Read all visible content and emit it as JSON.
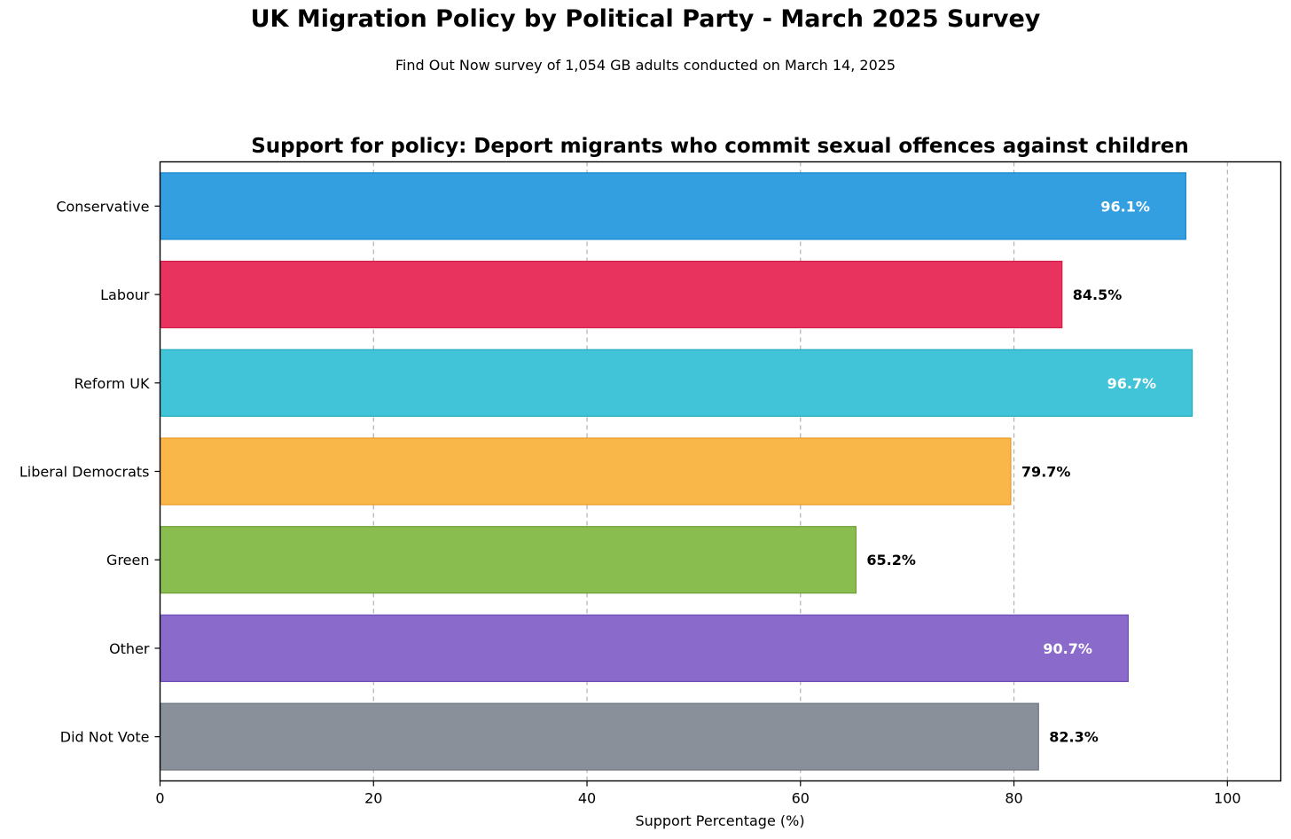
{
  "figure": {
    "title": "UK Migration Policy by Political Party - March 2025 Survey",
    "subtitle": "Find Out Now survey of 1,054 GB adults conducted on March 14, 2025"
  },
  "chart_data": {
    "type": "bar",
    "orientation": "horizontal",
    "title": "Support for policy: Deport migrants who commit sexual offences against children",
    "xlabel": "Support Percentage (%)",
    "ylabel": "",
    "xlim": [
      0,
      105
    ],
    "xticks": [
      0,
      20,
      40,
      60,
      80,
      100
    ],
    "grid": "x, dashed",
    "categories": [
      "Conservative",
      "Labour",
      "Reform UK",
      "Liberal Democrats",
      "Green",
      "Other",
      "Did Not Vote"
    ],
    "values": [
      96.1,
      84.5,
      96.7,
      79.7,
      65.2,
      90.7,
      82.3
    ],
    "value_labels": [
      "96.1%",
      "84.5%",
      "96.7%",
      "79.7%",
      "65.2%",
      "90.7%",
      "82.3%"
    ],
    "colors": [
      "#339fe0",
      "#e8335f",
      "#41c3d8",
      "#f9b649",
      "#8abd4f",
      "#8a6acb",
      "#8a9099"
    ],
    "edge_colors": [
      "#1a86cc",
      "#d21e4a",
      "#22aabf",
      "#eb9a20",
      "#6e9f36",
      "#6e4cb3",
      "#6c727b"
    ],
    "label_colors": [
      "#ffffff",
      "#000000",
      "#ffffff",
      "#000000",
      "#000000",
      "#ffffff",
      "#000000"
    ]
  }
}
